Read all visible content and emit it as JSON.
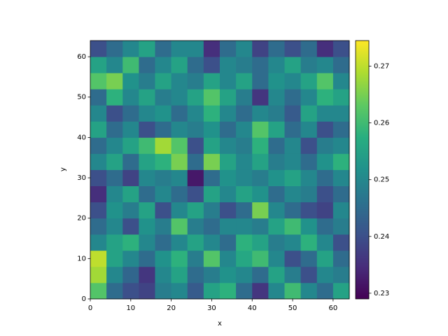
{
  "chart_data": {
    "type": "heatmap",
    "x_label": "x",
    "y_label": "y",
    "colormap": "viridis",
    "xlim": [
      0,
      64
    ],
    "ylim": [
      0,
      64
    ],
    "xticks": [
      0,
      10,
      20,
      30,
      40,
      50,
      60
    ],
    "yticks": [
      0,
      10,
      20,
      30,
      40,
      50,
      60
    ],
    "z": [
      [
        0.262,
        0.245,
        0.24,
        0.238,
        0.248,
        0.25,
        0.242,
        0.255,
        0.258,
        0.245,
        0.236,
        0.25,
        0.26,
        0.25,
        0.245,
        0.255
      ],
      [
        0.268,
        0.25,
        0.244,
        0.236,
        0.25,
        0.255,
        0.245,
        0.248,
        0.252,
        0.25,
        0.245,
        0.255,
        0.248,
        0.24,
        0.25,
        0.248
      ],
      [
        0.27,
        0.255,
        0.25,
        0.245,
        0.252,
        0.258,
        0.248,
        0.262,
        0.25,
        0.256,
        0.26,
        0.25,
        0.24,
        0.245,
        0.255,
        0.245
      ],
      [
        0.25,
        0.255,
        0.258,
        0.25,
        0.245,
        0.25,
        0.255,
        0.25,
        0.245,
        0.258,
        0.255,
        0.248,
        0.25,
        0.258,
        0.25,
        0.24
      ],
      [
        0.245,
        0.25,
        0.24,
        0.252,
        0.248,
        0.262,
        0.248,
        0.245,
        0.25,
        0.25,
        0.248,
        0.255,
        0.26,
        0.252,
        0.245,
        0.248
      ],
      [
        0.24,
        0.252,
        0.248,
        0.255,
        0.24,
        0.25,
        0.255,
        0.248,
        0.24,
        0.245,
        0.265,
        0.25,
        0.245,
        0.24,
        0.238,
        0.25
      ],
      [
        0.235,
        0.25,
        0.255,
        0.245,
        0.25,
        0.245,
        0.24,
        0.255,
        0.25,
        0.255,
        0.252,
        0.245,
        0.25,
        0.248,
        0.24,
        0.245
      ],
      [
        0.24,
        0.245,
        0.238,
        0.25,
        0.248,
        0.25,
        0.232,
        0.245,
        0.252,
        0.25,
        0.248,
        0.252,
        0.255,
        0.25,
        0.245,
        0.25
      ],
      [
        0.25,
        0.255,
        0.245,
        0.255,
        0.258,
        0.265,
        0.245,
        0.265,
        0.255,
        0.25,
        0.255,
        0.248,
        0.25,
        0.245,
        0.252,
        0.258
      ],
      [
        0.245,
        0.25,
        0.255,
        0.26,
        0.268,
        0.262,
        0.24,
        0.255,
        0.25,
        0.248,
        0.258,
        0.245,
        0.25,
        0.24,
        0.248,
        0.25
      ],
      [
        0.255,
        0.245,
        0.25,
        0.24,
        0.245,
        0.25,
        0.248,
        0.252,
        0.245,
        0.25,
        0.262,
        0.255,
        0.245,
        0.25,
        0.24,
        0.245
      ],
      [
        0.25,
        0.24,
        0.245,
        0.25,
        0.252,
        0.245,
        0.25,
        0.258,
        0.25,
        0.245,
        0.25,
        0.248,
        0.242,
        0.255,
        0.25,
        0.25
      ],
      [
        0.245,
        0.258,
        0.25,
        0.255,
        0.248,
        0.25,
        0.255,
        0.262,
        0.255,
        0.248,
        0.236,
        0.25,
        0.245,
        0.25,
        0.258,
        0.255
      ],
      [
        0.262,
        0.265,
        0.252,
        0.248,
        0.255,
        0.25,
        0.248,
        0.255,
        0.25,
        0.255,
        0.245,
        0.252,
        0.25,
        0.255,
        0.262,
        0.25
      ],
      [
        0.255,
        0.25,
        0.26,
        0.245,
        0.25,
        0.255,
        0.245,
        0.24,
        0.25,
        0.248,
        0.245,
        0.25,
        0.255,
        0.248,
        0.25,
        0.245
      ],
      [
        0.24,
        0.245,
        0.25,
        0.255,
        0.245,
        0.25,
        0.25,
        0.235,
        0.245,
        0.25,
        0.238,
        0.245,
        0.24,
        0.245,
        0.235,
        0.24
      ]
    ],
    "colorbar": {
      "lim": [
        0.229,
        0.2745
      ],
      "ticks": [
        0.23,
        0.24,
        0.25,
        0.26,
        0.27
      ]
    }
  }
}
